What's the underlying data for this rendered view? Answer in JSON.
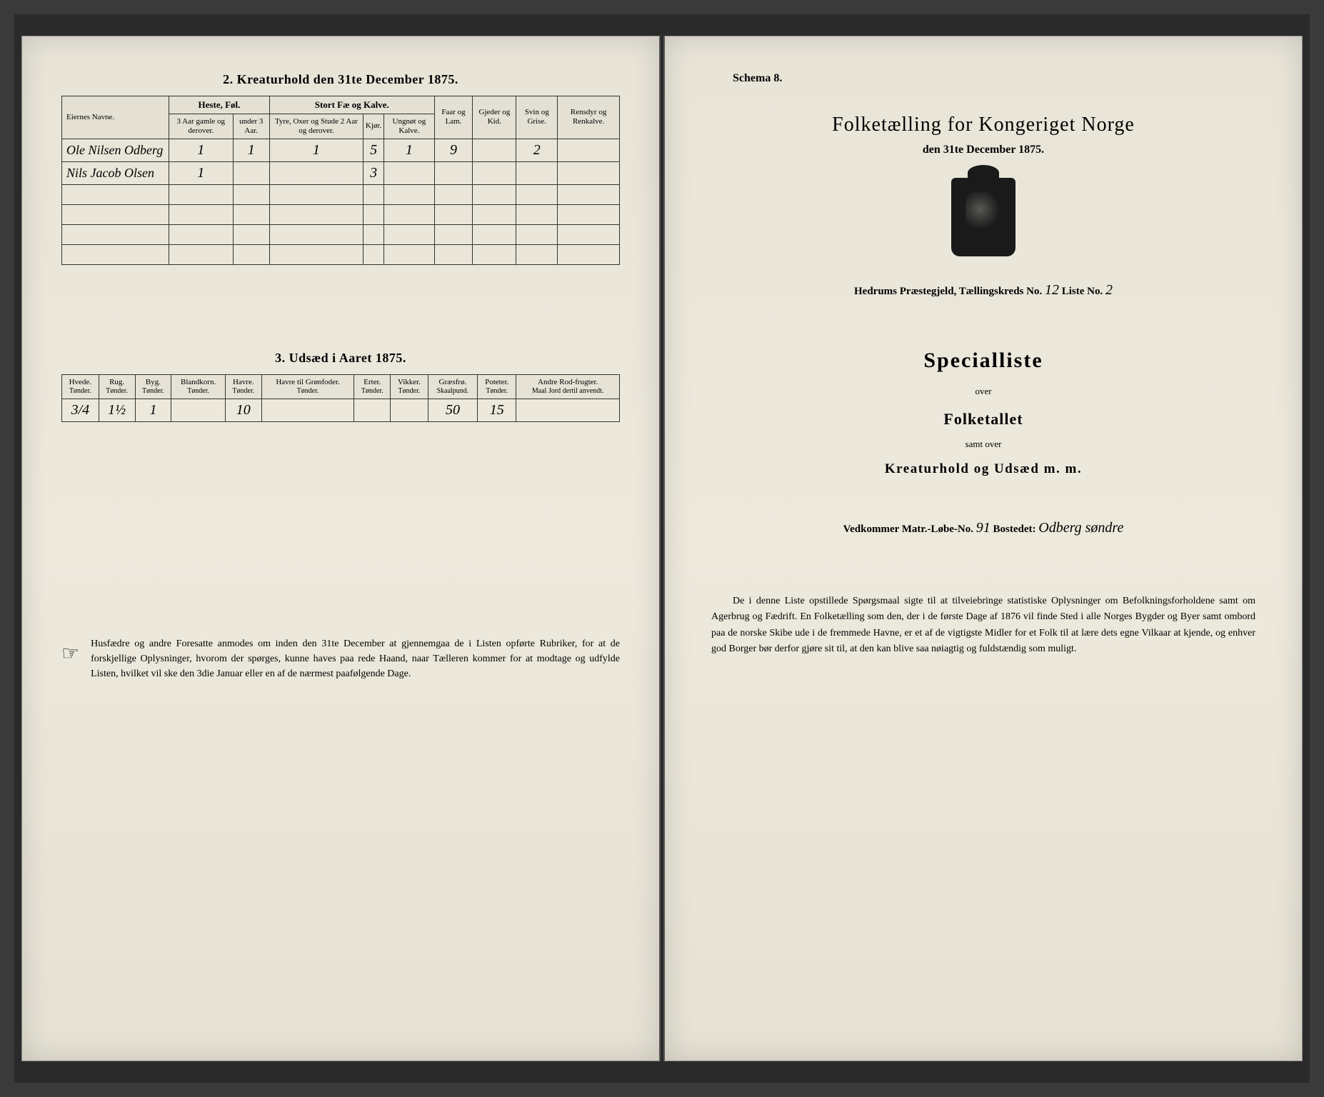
{
  "left": {
    "section2_title": "2.  Kreaturhold den 31te December 1875.",
    "table1": {
      "col_name": "Eiernes Navne.",
      "grp_heste": "Heste, Føl.",
      "grp_stort": "Stort Fæ og Kalve.",
      "col_faar": "Faar og Lam.",
      "col_gjeder": "Gjeder og Kid.",
      "col_svin": "Svin og Grise.",
      "col_rensdyr": "Rensdyr og Renkalve.",
      "sub_h1": "3 Aar gamle og derover.",
      "sub_h2": "under 3 Aar.",
      "sub_s1": "Tyre, Oxer og Stude 2 Aar og derover.",
      "sub_s2": "Kjør.",
      "sub_s3": "Ungnøt og Kalve.",
      "rows": [
        {
          "name": "Ole Nilsen Odberg",
          "h1": "1",
          "h2": "1",
          "s1": "1",
          "s2": "5",
          "s3": "1",
          "faar": "9",
          "gjed": "",
          "svin": "2",
          "ren": ""
        },
        {
          "name": "Nils Jacob Olsen",
          "h1": "1",
          "h2": "",
          "s1": "",
          "s2": "3",
          "s3": "",
          "faar": "",
          "gjed": "",
          "svin": "",
          "ren": ""
        }
      ]
    },
    "section3_title": "3.  Udsæd i Aaret 1875.",
    "table2": {
      "cols": [
        {
          "h": "Hvede.",
          "u": "Tønder."
        },
        {
          "h": "Rug.",
          "u": "Tønder."
        },
        {
          "h": "Byg.",
          "u": "Tønder."
        },
        {
          "h": "Blandkorn.",
          "u": "Tønder."
        },
        {
          "h": "Havre.",
          "u": "Tønder."
        },
        {
          "h": "Havre til Grønfoder.",
          "u": "Tønder."
        },
        {
          "h": "Erter.",
          "u": "Tønder."
        },
        {
          "h": "Vikker.",
          "u": "Tønder."
        },
        {
          "h": "Græsfrø.",
          "u": "Skaalpund."
        },
        {
          "h": "Poteter.",
          "u": "Tønder."
        },
        {
          "h": "Andre Rod-frugter.",
          "u": "Maal Jord dertil anvendt."
        }
      ],
      "row": [
        "3/4",
        "1½",
        "1",
        "",
        "10",
        "",
        "",
        "",
        "50",
        "15",
        ""
      ]
    },
    "footer": "Husfædre og andre Foresatte anmodes om inden den 31te December at gjennemgaa de i Listen opførte Rubriker, for at de forskjellige Oplysninger, hvorom der spørges, kunne haves paa rede Haand, naar Tælleren kommer for at modtage og udfylde Listen, hvilket vil ske den 3die Januar eller en af de nærmest paafølgende Dage."
  },
  "right": {
    "schema": "Schema 8.",
    "title": "Folketælling for Kongeriget Norge",
    "subtitle": "den 31te December 1875.",
    "parish_prefix": "Hedrums",
    "parish_label": " Præstegjeld, Tællingskreds No. ",
    "kreds_no": "12",
    "liste_label": "   Liste No. ",
    "liste_no": "2",
    "big": "Specialliste",
    "over": "over",
    "mid": "Folketallet",
    "samt": "samt over",
    "kreatur": "Kreaturhold og Udsæd m. m.",
    "matr_label": "Vedkommer Matr.-Løbe-No.  ",
    "matr_no": "91",
    "bosted_label": "   Bostedet: ",
    "bosted": "Odberg søndre",
    "footer": "De i denne Liste opstillede Spørgsmaal sigte til at tilveiebringe statistiske Oplysninger om Befolkningsforholdene samt om Agerbrug og Fædrift.  En Folketælling som den, der i de første Dage af 1876 vil finde Sted i alle Norges Bygder og Byer samt ombord paa de norske Skibe ude i de fremmede Havne, er et af de vigtigste Midler for et Folk til at lære dets egne Vilkaar at kjende, og enhver god Borger bør derfor gjøre sit til, at den kan blive saa nøiagtig og fuldstændig som muligt."
  }
}
